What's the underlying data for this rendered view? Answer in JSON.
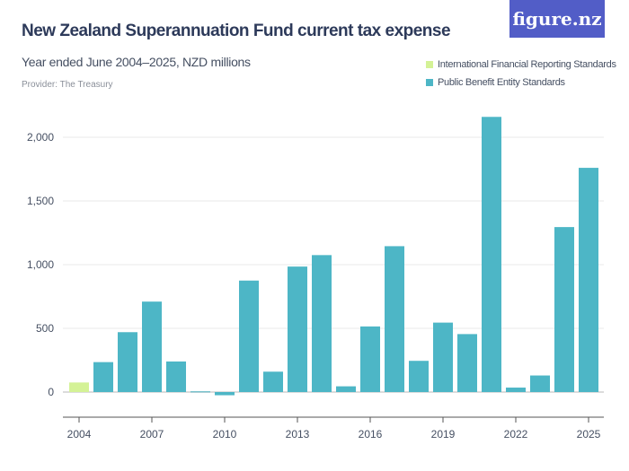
{
  "header": {
    "title": "New Zealand Superannuation Fund current tax expense",
    "subtitle": "Year ended June 2004–2025, NZD millions",
    "provider": "Provider: The Treasury",
    "logo": "figure.nz"
  },
  "chart_data": {
    "type": "bar",
    "title": "New Zealand Superannuation Fund current tax expense",
    "subtitle": "Year ended June 2004–2025, NZD millions",
    "categories": [
      "2004",
      "2005",
      "2006",
      "2007",
      "2008",
      "2009",
      "2010",
      "2011",
      "2012",
      "2013",
      "2014",
      "2015",
      "2016",
      "2017",
      "2018",
      "2019",
      "2020",
      "2021",
      "2022",
      "2023",
      "2024",
      "2025"
    ],
    "series": [
      {
        "name": "International Financial Reporting Standards",
        "color": "#d4f296",
        "values": [
          75,
          null,
          null,
          null,
          null,
          null,
          null,
          null,
          null,
          null,
          null,
          null,
          null,
          null,
          null,
          null,
          null,
          null,
          null,
          null,
          null,
          null
        ]
      },
      {
        "name": "Public Benefit Entity Standards",
        "color": "#4db6c6",
        "values": [
          null,
          235,
          470,
          710,
          240,
          5,
          -25,
          875,
          160,
          985,
          1075,
          45,
          515,
          1145,
          245,
          545,
          455,
          2160,
          35,
          130,
          1295,
          1760
        ]
      }
    ],
    "yticks": [
      0,
      500,
      1000,
      1500,
      2000
    ],
    "ytick_labels": [
      "0",
      "500",
      "1,000",
      "1,500",
      "2,000"
    ],
    "xtick_labels": [
      "2004",
      "2007",
      "2010",
      "2013",
      "2016",
      "2019",
      "2022",
      "2025"
    ],
    "ylim": [
      -200,
      2200
    ],
    "grid": true,
    "legend": "top-right"
  }
}
